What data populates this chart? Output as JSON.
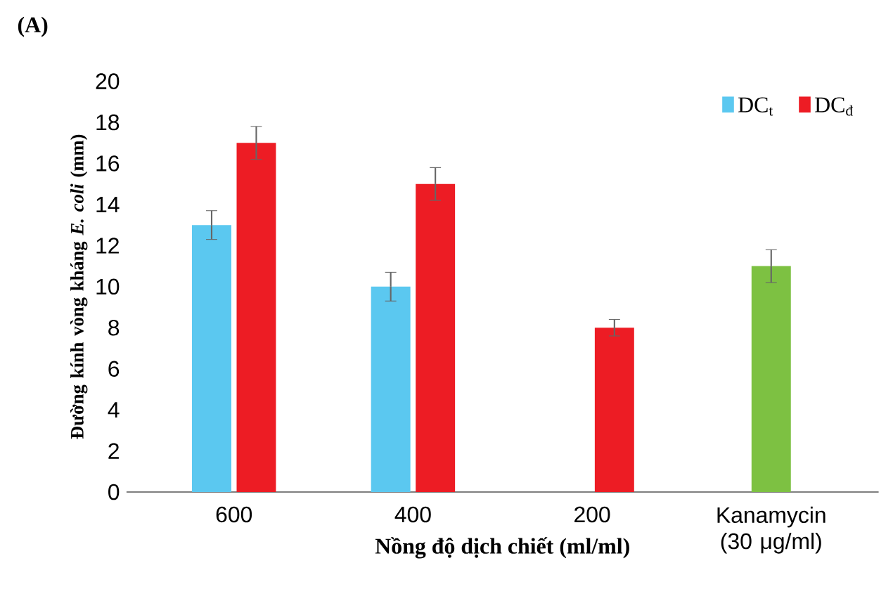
{
  "chart_data": {
    "type": "bar",
    "annotations": [
      "(A)"
    ],
    "xlabel": "Nồng độ dịch chiết (ml/ml)",
    "ylabel": "Đường kính vòng kháng *E. coli* (mm)",
    "categories": [
      "600",
      "400",
      "200",
      "Kanamycin (30 μg/ml)"
    ],
    "series": [
      {
        "name": "DC$_{t}$",
        "color": "#5bc8f0",
        "values": [
          13,
          10,
          null,
          null
        ],
        "errors": [
          0.7,
          0.7,
          null,
          null
        ]
      },
      {
        "name": "DC$_{đ}$",
        "color": "#ed1c24",
        "values": [
          17,
          15,
          8,
          null
        ],
        "errors": [
          0.8,
          0.8,
          0.4,
          null
        ]
      },
      {
        "color": "#7dc142",
        "values": [
          null,
          null,
          null,
          11
        ],
        "errors": [
          null,
          null,
          null,
          0.8
        ]
      }
    ],
    "ylim": [
      0,
      20
    ],
    "yticks": [
      0,
      2,
      4,
      6,
      8,
      10,
      12,
      14,
      16,
      18,
      20
    ],
    "legend": "top right"
  }
}
